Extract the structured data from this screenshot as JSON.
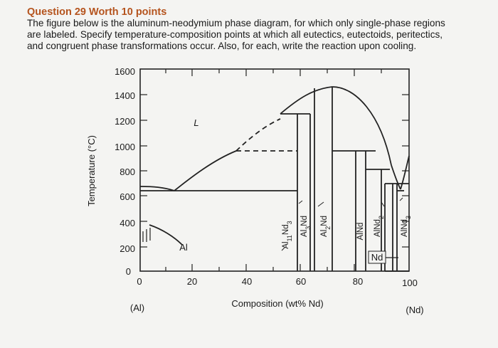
{
  "question": {
    "title": "Question 29 Worth 10 points",
    "lines": [
      "The figure below is the aluminum-neodymium phase diagram, for which only single-phase regions",
      "are labeled. Specify temperature-composition points at which all eutectics, eutectoids, peritectics,",
      "and congruent phase transformations occur. Also, for each, write the reaction upon cooling."
    ]
  },
  "diagram": {
    "y_axis_label": "Temperature (°C)",
    "x_axis_label": "Composition (wt% Nd)",
    "y_ticks": [
      "1600",
      "1400",
      "1200",
      "1000",
      "800",
      "600",
      "400",
      "200",
      "0"
    ],
    "x_ticks": [
      "0",
      "20",
      "40",
      "60",
      "80",
      "100"
    ],
    "left_end_label": "(Al)",
    "right_end_label": "(Nd)",
    "phase_labels": {
      "liquid": "L",
      "al": "Al",
      "nd": "Nd"
    },
    "compound_labels": [
      {
        "base": "Al",
        "sub1": "11",
        "mid": "Nd",
        "sub2": "3"
      },
      {
        "base": "Al",
        "sub1": "3",
        "mid": "Nd",
        "sub2": ""
      },
      {
        "base": "Al",
        "sub1": "2",
        "mid": "Nd",
        "sub2": ""
      },
      {
        "base": "AlNd",
        "sub1": "",
        "mid": "",
        "sub2": ""
      },
      {
        "base": "AlNd",
        "sub1": "2",
        "mid": "",
        "sub2": ""
      },
      {
        "base": "AlNd",
        "sub1": "3",
        "mid": "",
        "sub2": ""
      }
    ]
  }
}
